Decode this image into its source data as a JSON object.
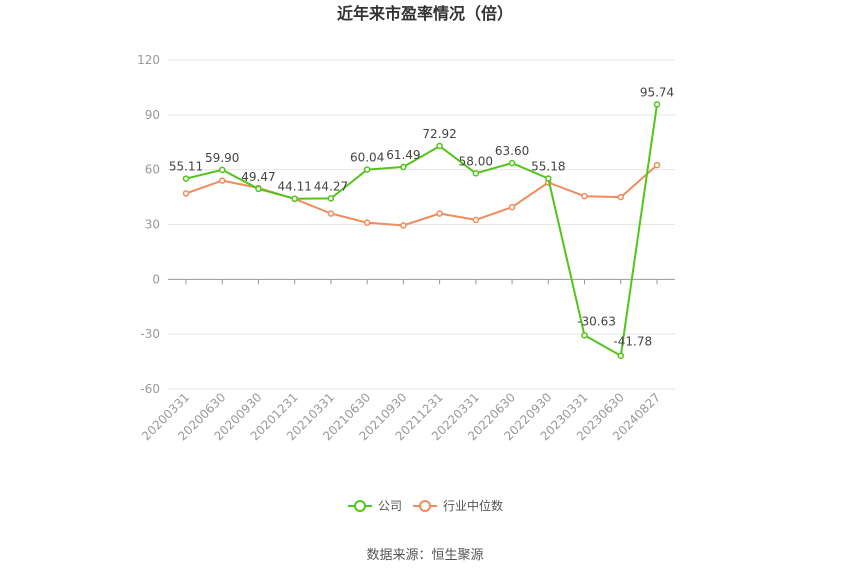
{
  "chart_data": {
    "type": "line",
    "title": "近年来市盈率情况（倍）",
    "xlabel": "",
    "ylabel": "",
    "ylim": [
      -60,
      120
    ],
    "yticks": [
      -60,
      -30,
      0,
      30,
      60,
      90,
      120
    ],
    "grid": true,
    "legend_position": "bottom",
    "categories": [
      "20200331",
      "20200630",
      "20200930",
      "20201231",
      "20210331",
      "20210630",
      "20210930",
      "20211231",
      "20220331",
      "20220630",
      "20220930",
      "20230331",
      "20230630",
      "20240827"
    ],
    "series": [
      {
        "name": "公司",
        "color": "#52c41a",
        "values": [
          55.11,
          59.9,
          49.47,
          44.11,
          44.27,
          60.04,
          61.49,
          72.92,
          58.0,
          63.6,
          55.18,
          -30.63,
          -41.78,
          95.74
        ],
        "labels": [
          "55.11",
          "59.90",
          "49.47",
          "44.11",
          "44.27",
          "60.04",
          "61.49",
          "72.92",
          "58.00",
          "63.60",
          "55.18",
          "-30.63",
          "-41.78",
          "95.74"
        ]
      },
      {
        "name": "行业中位数",
        "color": "#f08c5a",
        "values": [
          47,
          54,
          50,
          44,
          36,
          31,
          29.5,
          36,
          32.5,
          39.5,
          53,
          45.5,
          45,
          62.5
        ]
      }
    ]
  },
  "footer": {
    "source": "数据来源：恒生聚源"
  }
}
